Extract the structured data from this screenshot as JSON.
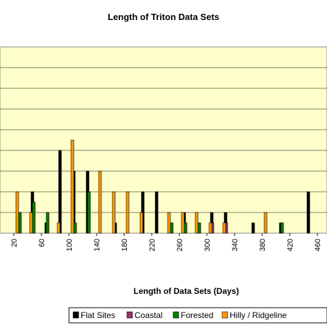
{
  "chart_data": {
    "type": "bar",
    "title": "Length of Triton Data Sets",
    "xlabel": "Length of Data Sets (Days)",
    "ylabel": "",
    "xlim": [
      20,
      470
    ],
    "ylim": [
      0,
      9
    ],
    "x_ticks": [
      20,
      60,
      100,
      140,
      180,
      220,
      260,
      300,
      340,
      380,
      420,
      460
    ],
    "tick_labels": [
      "20",
      "60",
      "100",
      "140",
      "180",
      "220",
      "260",
      "300",
      "340",
      "380",
      "420",
      "460"
    ],
    "grid": true,
    "legend_position": "bottom-right",
    "series": [
      {
        "name": "Flat Sites",
        "color": "#000000",
        "x": [
          27,
          47,
          67,
          87,
          107,
          127,
          167,
          207,
          227,
          247,
          267,
          287,
          307,
          327,
          367,
          407,
          447
        ],
        "values": [
          1,
          2,
          0.5,
          4,
          3,
          3,
          0.5,
          2,
          2,
          0.5,
          1,
          0.5,
          1,
          1,
          0.5,
          0.5,
          2
        ]
      },
      {
        "name": "Coastal",
        "color": "#993366",
        "x": [
          308,
          328
        ],
        "values": [
          0.5,
          0.5
        ]
      },
      {
        "name": "Forested",
        "color": "#008000",
        "x": [
          29,
          49,
          69,
          109,
          129,
          249,
          269,
          289,
          409
        ],
        "values": [
          1,
          1.5,
          1,
          0.5,
          2,
          0.5,
          0.5,
          0.5,
          0.5
        ]
      },
      {
        "name": "Hilly / Ridgeline",
        "color": "#FF9900",
        "x": [
          25,
          45,
          85,
          105,
          145,
          165,
          185,
          205,
          245,
          265,
          285,
          305,
          325,
          385
        ],
        "values": [
          2,
          1,
          0.5,
          4.5,
          3,
          2,
          2,
          1,
          1,
          1,
          1,
          0.5,
          0.5,
          1
        ]
      }
    ]
  }
}
